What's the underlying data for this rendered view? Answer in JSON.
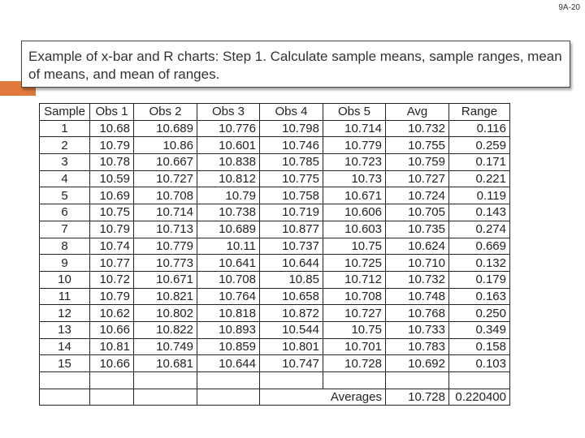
{
  "slide_number": "9A-20",
  "title": "Example of x-bar and R charts: Step 1. Calculate sample means, sample ranges, mean of means, and mean of ranges.",
  "table": {
    "headers": [
      "Sample",
      "Obs 1",
      "Obs 2",
      "Obs 3",
      "Obs 4",
      "Obs 5",
      "Avg",
      "Range"
    ],
    "rows": [
      [
        "1",
        "10.68",
        "10.689",
        "10.776",
        "10.798",
        "10.714",
        "10.732",
        "0.116"
      ],
      [
        "2",
        "10.79",
        "10.86",
        "10.601",
        "10.746",
        "10.779",
        "10.755",
        "0.259"
      ],
      [
        "3",
        "10.78",
        "10.667",
        "10.838",
        "10.785",
        "10.723",
        "10.759",
        "0.171"
      ],
      [
        "4",
        "10.59",
        "10.727",
        "10.812",
        "10.775",
        "10.73",
        "10.727",
        "0.221"
      ],
      [
        "5",
        "10.69",
        "10.708",
        "10.79",
        "10.758",
        "10.671",
        "10.724",
        "0.119"
      ],
      [
        "6",
        "10.75",
        "10.714",
        "10.738",
        "10.719",
        "10.606",
        "10.705",
        "0.143"
      ],
      [
        "7",
        "10.79",
        "10.713",
        "10.689",
        "10.877",
        "10.603",
        "10.735",
        "0.274"
      ],
      [
        "8",
        "10.74",
        "10.779",
        "10.11",
        "10.737",
        "10.75",
        "10.624",
        "0.669"
      ],
      [
        "9",
        "10.77",
        "10.773",
        "10.641",
        "10.644",
        "10.725",
        "10.710",
        "0.132"
      ],
      [
        "10",
        "10.72",
        "10.671",
        "10.708",
        "10.85",
        "10.712",
        "10.732",
        "0.179"
      ],
      [
        "11",
        "10.79",
        "10.821",
        "10.764",
        "10.658",
        "10.708",
        "10.748",
        "0.163"
      ],
      [
        "12",
        "10.62",
        "10.802",
        "10.818",
        "10.872",
        "10.727",
        "10.768",
        "0.250"
      ],
      [
        "13",
        "10.66",
        "10.822",
        "10.893",
        "10.544",
        "10.75",
        "10.733",
        "0.349"
      ],
      [
        "14",
        "10.81",
        "10.749",
        "10.859",
        "10.801",
        "10.701",
        "10.783",
        "0.158"
      ],
      [
        "15",
        "10.66",
        "10.681",
        "10.644",
        "10.747",
        "10.728",
        "10.692",
        "0.103"
      ]
    ],
    "averages_label": "Averages",
    "avg_mean": "10.728",
    "range_mean": "0.220400"
  }
}
